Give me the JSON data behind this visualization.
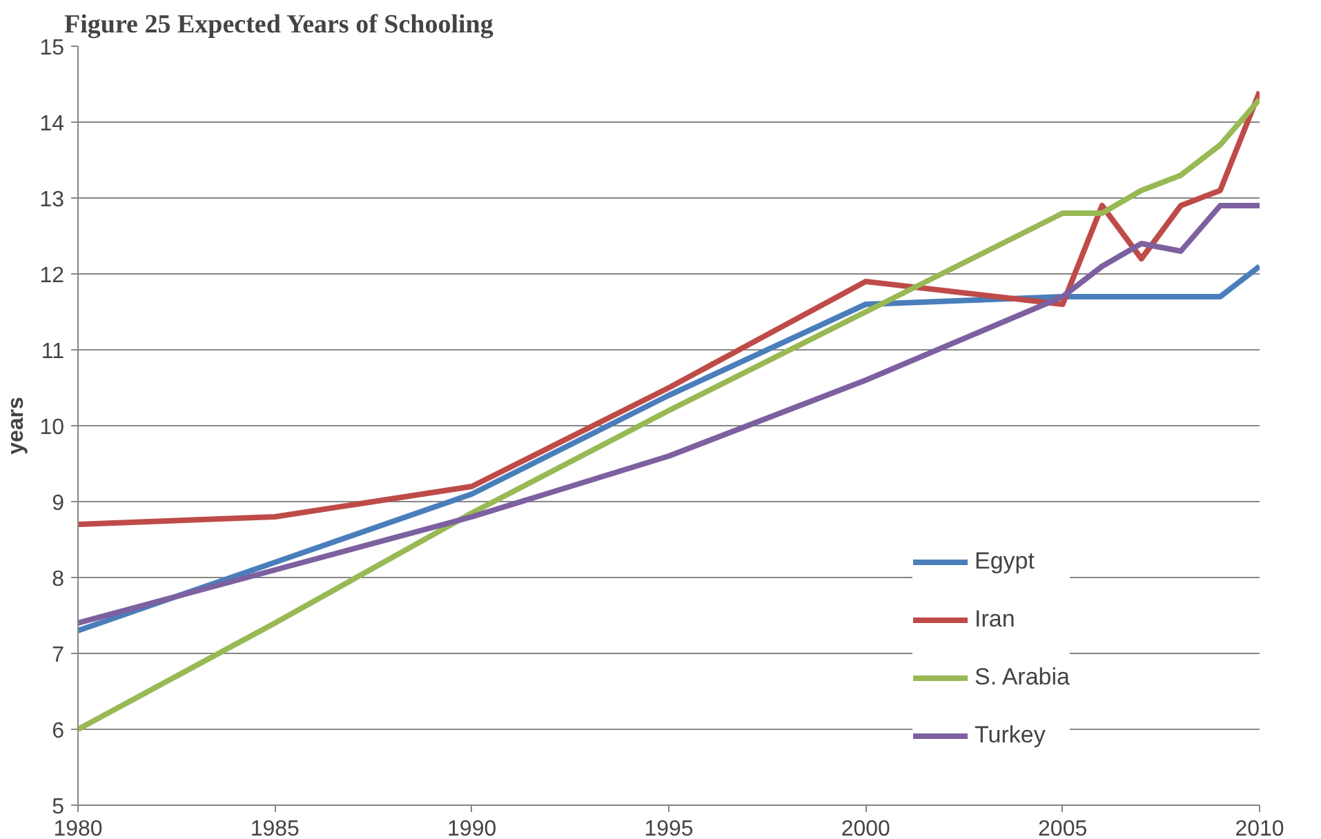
{
  "chart_data": {
    "type": "line",
    "title": "Figure 25 Expected Years of Schooling",
    "ylabel": "years",
    "x": [
      1980,
      1985,
      1990,
      1995,
      2000,
      2005,
      2006,
      2007,
      2008,
      2009,
      2010
    ],
    "series": [
      {
        "name": "Egypt",
        "color": "#4a7ebb",
        "values": [
          7.3,
          8.2,
          9.1,
          10.4,
          11.6,
          11.7,
          11.7,
          11.7,
          11.7,
          11.7,
          12.1
        ]
      },
      {
        "name": "Iran",
        "color": "#be4b48",
        "values": [
          8.7,
          8.8,
          9.2,
          10.5,
          11.9,
          11.6,
          12.9,
          12.2,
          12.9,
          13.1,
          14.4
        ]
      },
      {
        "name": "S. Arabia",
        "color": "#98b954",
        "values": [
          6.0,
          7.4,
          8.85,
          10.2,
          11.5,
          12.8,
          12.8,
          13.1,
          13.3,
          13.7,
          14.3
        ]
      },
      {
        "name": "Turkey",
        "color": "#7d60a0",
        "values": [
          7.4,
          8.1,
          8.8,
          9.6,
          10.6,
          11.7,
          12.1,
          12.4,
          12.3,
          12.9,
          12.9
        ]
      }
    ],
    "xlim": [
      1980,
      2010
    ],
    "xticks": [
      1980,
      1985,
      1990,
      1995,
      2000,
      2005,
      2010
    ],
    "ylim": [
      5,
      15
    ],
    "yticks": [
      5,
      6,
      7,
      8,
      9,
      10,
      11,
      12,
      13,
      14,
      15
    ],
    "grid": "y",
    "legend": "right",
    "line_style": "solid",
    "marker": "none"
  }
}
